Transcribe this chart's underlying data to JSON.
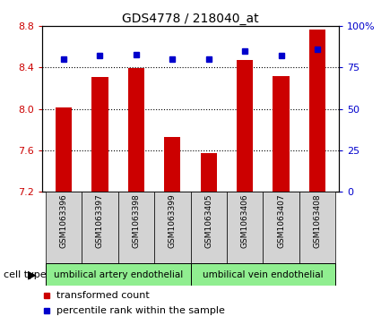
{
  "title": "GDS4778 / 218040_at",
  "samples": [
    "GSM1063396",
    "GSM1063397",
    "GSM1063398",
    "GSM1063399",
    "GSM1063405",
    "GSM1063406",
    "GSM1063407",
    "GSM1063408"
  ],
  "bar_values": [
    8.01,
    8.31,
    8.39,
    7.73,
    7.57,
    8.47,
    8.32,
    8.77
  ],
  "percentile_values": [
    80,
    82,
    83,
    80,
    80,
    85,
    82,
    86
  ],
  "ylim": [
    7.2,
    8.8
  ],
  "yticks": [
    7.2,
    7.6,
    8.0,
    8.4,
    8.8
  ],
  "right_ylim": [
    0,
    100
  ],
  "right_yticks": [
    0,
    25,
    50,
    75,
    100
  ],
  "right_yticklabels": [
    "0",
    "25",
    "50",
    "75",
    "100%"
  ],
  "bar_color": "#cc0000",
  "percentile_color": "#0000cc",
  "bar_bottom": 7.2,
  "group1_label": "umbilical artery endothelial",
  "group2_label": "umbilical vein endothelial",
  "group_color": "#90ee90",
  "cell_type_label": "cell type",
  "legend_label1": "transformed count",
  "legend_label2": "percentile rank within the sample",
  "grid_dotted_at": [
    7.6,
    8.0,
    8.4
  ],
  "bar_width": 0.45,
  "xlabel_fontsize": 6.5,
  "ytick_fontsize": 8,
  "title_fontsize": 10
}
